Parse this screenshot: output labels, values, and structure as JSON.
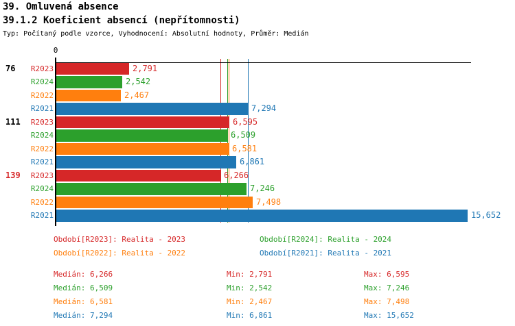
{
  "header": {
    "title": "39. Omluvená absence",
    "subtitle": "39.1.2 Koeficient absencí (nepřítomnosti)",
    "meta": "Typ: Počítaný podle vzorce, Vyhodnocení: Absolutní hodnoty, Průměr: Medián"
  },
  "chart_data": {
    "type": "bar",
    "orientation": "horizontal",
    "axis_zero_label": "0",
    "value_max": 15652,
    "grid": false,
    "series": [
      {
        "id": "R2023",
        "name": "Realita - 2023",
        "color": "#d62728",
        "median": 6266
      },
      {
        "id": "R2024",
        "name": "Realita - 2024",
        "color": "#2ca02c",
        "median": 6509
      },
      {
        "id": "R2022",
        "name": "Realita - 2022",
        "color": "#ff7f0e",
        "median": 6581
      },
      {
        "id": "R2021",
        "name": "Realita - 2021",
        "color": "#1f77b4",
        "median": 7294
      }
    ],
    "groups": [
      {
        "label": "76",
        "label_color": "#000000",
        "values": [
          2791,
          2542,
          2467,
          7294
        ],
        "displays": [
          "2,791",
          "2,542",
          "2,467",
          "7,294"
        ]
      },
      {
        "label": "111",
        "label_color": "#000000",
        "values": [
          6595,
          6509,
          6581,
          6861
        ],
        "displays": [
          "6,595",
          "6,509",
          "6,581",
          "6,861"
        ]
      },
      {
        "label": "139",
        "label_color": "#d62728",
        "values": [
          6266,
          7246,
          7498,
          15652
        ],
        "displays": [
          "6,266",
          "7,246",
          "7,498",
          "15,652"
        ]
      }
    ]
  },
  "legend": {
    "items": [
      {
        "label": "Období[R2023]: Realita - 2023",
        "color": "#d62728"
      },
      {
        "label": "Období[R2024]: Realita - 2024",
        "color": "#2ca02c"
      },
      {
        "label": "Období[R2022]: Realita - 2022",
        "color": "#ff7f0e"
      },
      {
        "label": "Období[R2021]: Realita - 2021",
        "color": "#1f77b4"
      }
    ]
  },
  "stats": {
    "median_label": "Medián",
    "min_label": "Min",
    "max_label": "Max",
    "rows": [
      {
        "color": "#d62728",
        "median": "6,266",
        "min": "2,791",
        "max": "6,595"
      },
      {
        "color": "#2ca02c",
        "median": "6,509",
        "min": "2,542",
        "max": "7,246"
      },
      {
        "color": "#ff7f0e",
        "median": "6,581",
        "min": "2,467",
        "max": "7,498"
      },
      {
        "color": "#1f77b4",
        "median": "7,294",
        "min": "6,861",
        "max": "15,652"
      }
    ]
  }
}
